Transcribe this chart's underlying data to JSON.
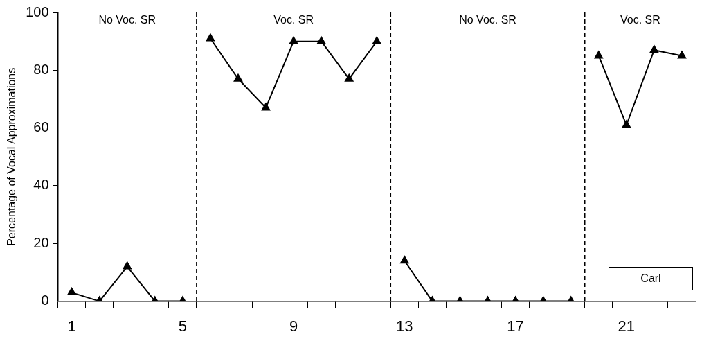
{
  "chart_data": {
    "type": "line",
    "ylabel": "Percentage of Vocal Approximations",
    "series": [
      {
        "color": "#000000",
        "x": [
          1,
          2,
          3,
          4,
          5
        ],
        "values": [
          3,
          0,
          12,
          0,
          0
        ]
      },
      {
        "color": "#000000",
        "x": [
          6,
          7,
          8,
          9,
          10,
          11,
          12
        ],
        "values": [
          91,
          77,
          67,
          90,
          90,
          77,
          90
        ]
      },
      {
        "color": "#000000",
        "x": [
          13,
          14,
          15,
          16,
          17,
          18,
          19
        ],
        "values": [
          14,
          0,
          0,
          0,
          0,
          0,
          0
        ]
      },
      {
        "color": "#000000",
        "x": [
          20,
          21,
          22,
          23
        ],
        "values": [
          85,
          61,
          87,
          85
        ]
      }
    ],
    "xlim": [
      0.5,
      23.5
    ],
    "xticks": [
      {
        "value": 0.5,
        "label": null
      },
      1,
      {
        "value": 1.5,
        "label": null
      },
      {
        "value": 2.5,
        "label": null
      },
      {
        "value": 3.5,
        "label": null
      },
      {
        "value": 4.5,
        "label": null
      },
      5,
      {
        "value": 5.5,
        "label": null
      },
      {
        "value": 6.5,
        "label": null
      },
      {
        "value": 7.5,
        "label": null
      },
      {
        "value": 8.5,
        "label": null
      },
      9,
      {
        "value": 9.5,
        "label": null
      },
      {
        "value": 10.5,
        "label": null
      },
      {
        "value": 11.5,
        "label": null
      },
      {
        "value": 12.5,
        "label": null
      },
      13,
      {
        "value": 13.5,
        "label": null
      },
      {
        "value": 14.5,
        "label": null
      },
      {
        "value": 15.5,
        "label": null
      },
      {
        "value": 16.5,
        "label": null
      },
      17,
      {
        "value": 17.5,
        "label": null
      },
      {
        "value": 18.5,
        "label": null
      },
      {
        "value": 19.5,
        "label": null
      },
      {
        "value": 20.5,
        "label": null
      },
      21,
      {
        "value": 21.5,
        "label": null
      },
      {
        "value": 22.5,
        "label": null
      },
      {
        "value": 23.5,
        "label": null
      }
    ],
    "ylim": [
      0,
      100
    ],
    "yticks": [
      0,
      20,
      40,
      60,
      80,
      100
    ],
    "ref_lines": [
      {
        "axis": "x",
        "value": 5.5,
        "line_style": "dashed"
      },
      {
        "axis": "x",
        "value": 12.5,
        "line_style": "dashed"
      },
      {
        "axis": "x",
        "value": 19.5,
        "line_style": "dashed"
      }
    ],
    "annotations": [
      "No Voc. SR",
      "Voc. SR",
      "No Voc. SR",
      "Voc. SR",
      "Carl"
    ],
    "grid": false,
    "legend": false,
    "marker": "triangle",
    "line_style": "solid"
  }
}
